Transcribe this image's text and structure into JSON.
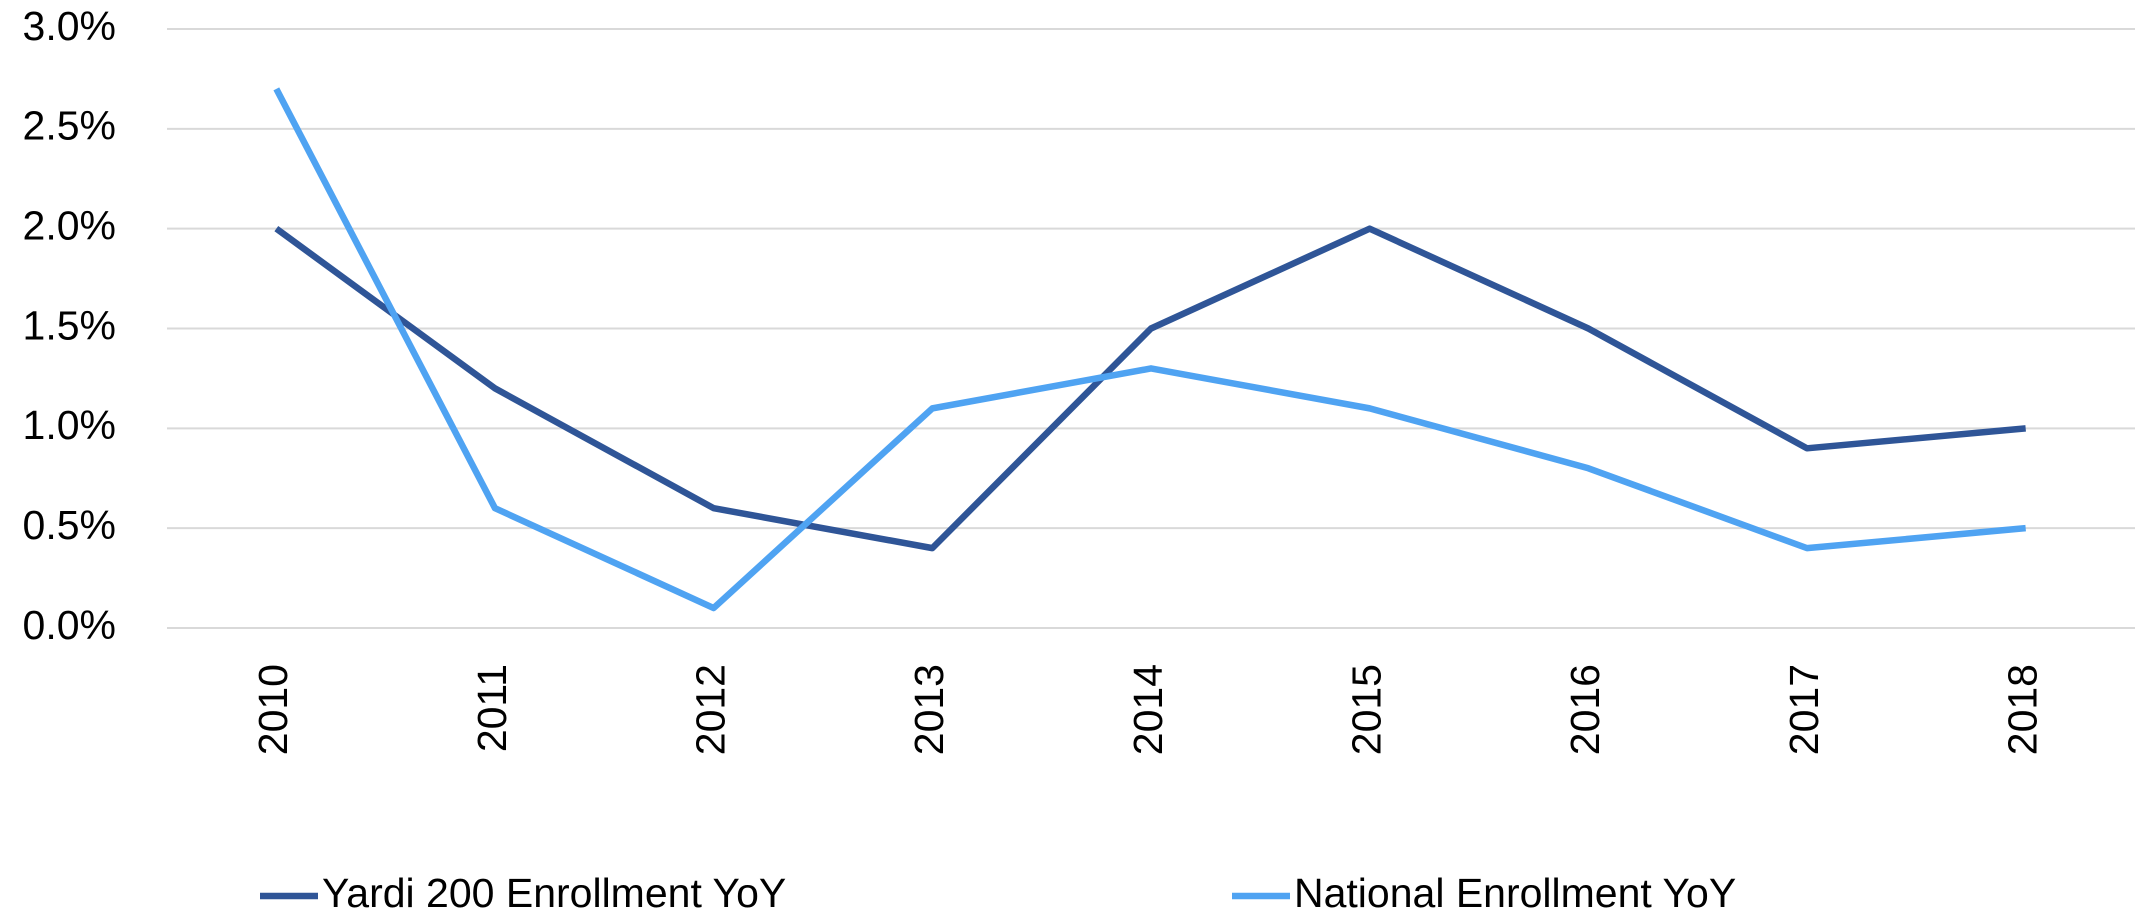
{
  "chart_data": {
    "type": "line",
    "categories": [
      "2010",
      "2011",
      "2012",
      "2013",
      "2014",
      "2015",
      "2016",
      "2017",
      "2018"
    ],
    "series": [
      {
        "name": "Yardi 200 Enrollment YoY",
        "color": "#2f5597",
        "values": [
          2.0,
          1.2,
          0.6,
          0.4,
          1.5,
          2.0,
          1.5,
          0.9,
          1.0
        ]
      },
      {
        "name": "National Enrollment YoY",
        "color": "#4fa3f2",
        "values": [
          2.7,
          0.6,
          0.1,
          1.1,
          1.3,
          1.1,
          0.8,
          0.4,
          0.5
        ]
      }
    ],
    "ylim": [
      0,
      3
    ],
    "yticks": [
      {
        "value": 0,
        "label": "0.0%"
      },
      {
        "value": 0.5,
        "label": "0.5%"
      },
      {
        "value": 1,
        "label": "1.0%"
      },
      {
        "value": 1.5,
        "label": "1.5%"
      },
      {
        "value": 2,
        "label": "2.0%"
      },
      {
        "value": 2.5,
        "label": "2.5%"
      },
      {
        "value": 3,
        "label": "3.0%"
      }
    ],
    "grid": true,
    "legend": "bottom"
  }
}
